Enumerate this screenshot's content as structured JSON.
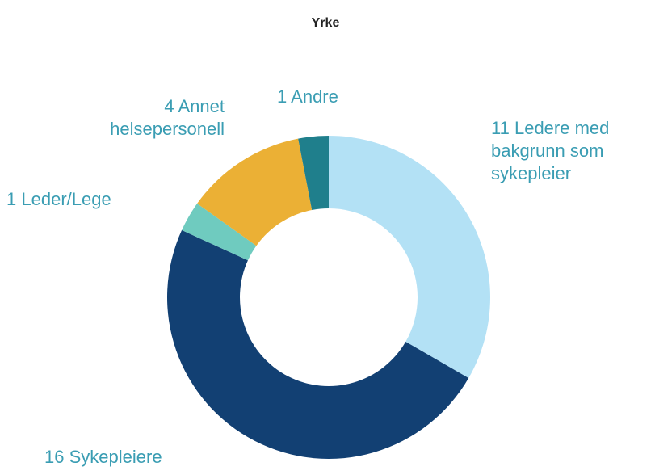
{
  "chart_data": {
    "type": "pie",
    "title": "Yrke",
    "categories": [
      "Ledere med bakgrunn som sykepleier",
      "Sykepleiere",
      "Leder/Lege",
      "Annet helsepersonell",
      "Andre"
    ],
    "values": [
      11,
      16,
      1,
      4,
      1
    ],
    "colors": [
      "#b3e1f5",
      "#124073",
      "#6fcbbf",
      "#ebb035",
      "#1f7f8c"
    ]
  }
}
